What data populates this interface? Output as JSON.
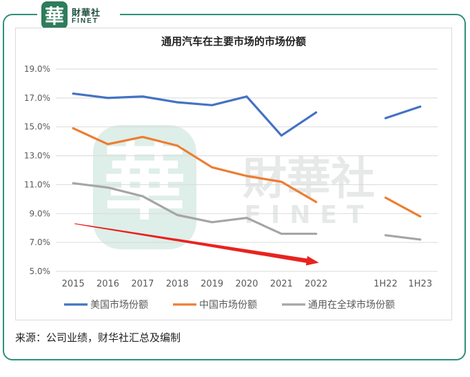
{
  "logo": {
    "seal_char": "華",
    "name_cn": "財華社",
    "name_en": "FINET"
  },
  "watermark": {
    "seal_char": "華",
    "name_cn": "財華社",
    "name_en": "FINET"
  },
  "source_note": "来源：公司业绩，财华社汇总及编制",
  "colors": {
    "us": "#4472c4",
    "china": "#ed7d31",
    "global": "#a5a5a5",
    "arrow": "#e8231f",
    "frame": "#2f8f7a"
  },
  "chart_data": {
    "type": "line",
    "title": "通用汽车在主要市场的市场份额",
    "categories": [
      "2015",
      "2016",
      "2017",
      "2018",
      "2019",
      "2020",
      "2021",
      "2022",
      "",
      "1H22",
      "1H23"
    ],
    "y_ticks": [
      "5.0%",
      "7.0%",
      "9.0%",
      "11.0%",
      "13.0%",
      "15.0%",
      "17.0%",
      "19.0%"
    ],
    "ylim": [
      5,
      19
    ],
    "grid": true,
    "legend_position": "bottom",
    "series": [
      {
        "name": "美国市场份额",
        "color": "#4472c4",
        "values": [
          17.3,
          17.0,
          17.1,
          16.7,
          16.5,
          17.1,
          14.4,
          16.0,
          null,
          15.6,
          16.4
        ]
      },
      {
        "name": "中国市场份额",
        "color": "#ed7d31",
        "values": [
          14.9,
          13.8,
          14.3,
          13.7,
          12.2,
          11.6,
          11.2,
          9.8,
          null,
          10.1,
          8.8
        ]
      },
      {
        "name": "通用在全球市场份额",
        "color": "#a5a5a5",
        "values": [
          11.1,
          10.8,
          10.2,
          8.9,
          8.4,
          8.7,
          7.6,
          7.6,
          null,
          7.5,
          7.2
        ]
      }
    ],
    "annotation": {
      "type": "arrow",
      "from": [
        "2015",
        8.3
      ],
      "to": [
        "2022",
        5.6
      ],
      "color": "#e8231f"
    }
  }
}
